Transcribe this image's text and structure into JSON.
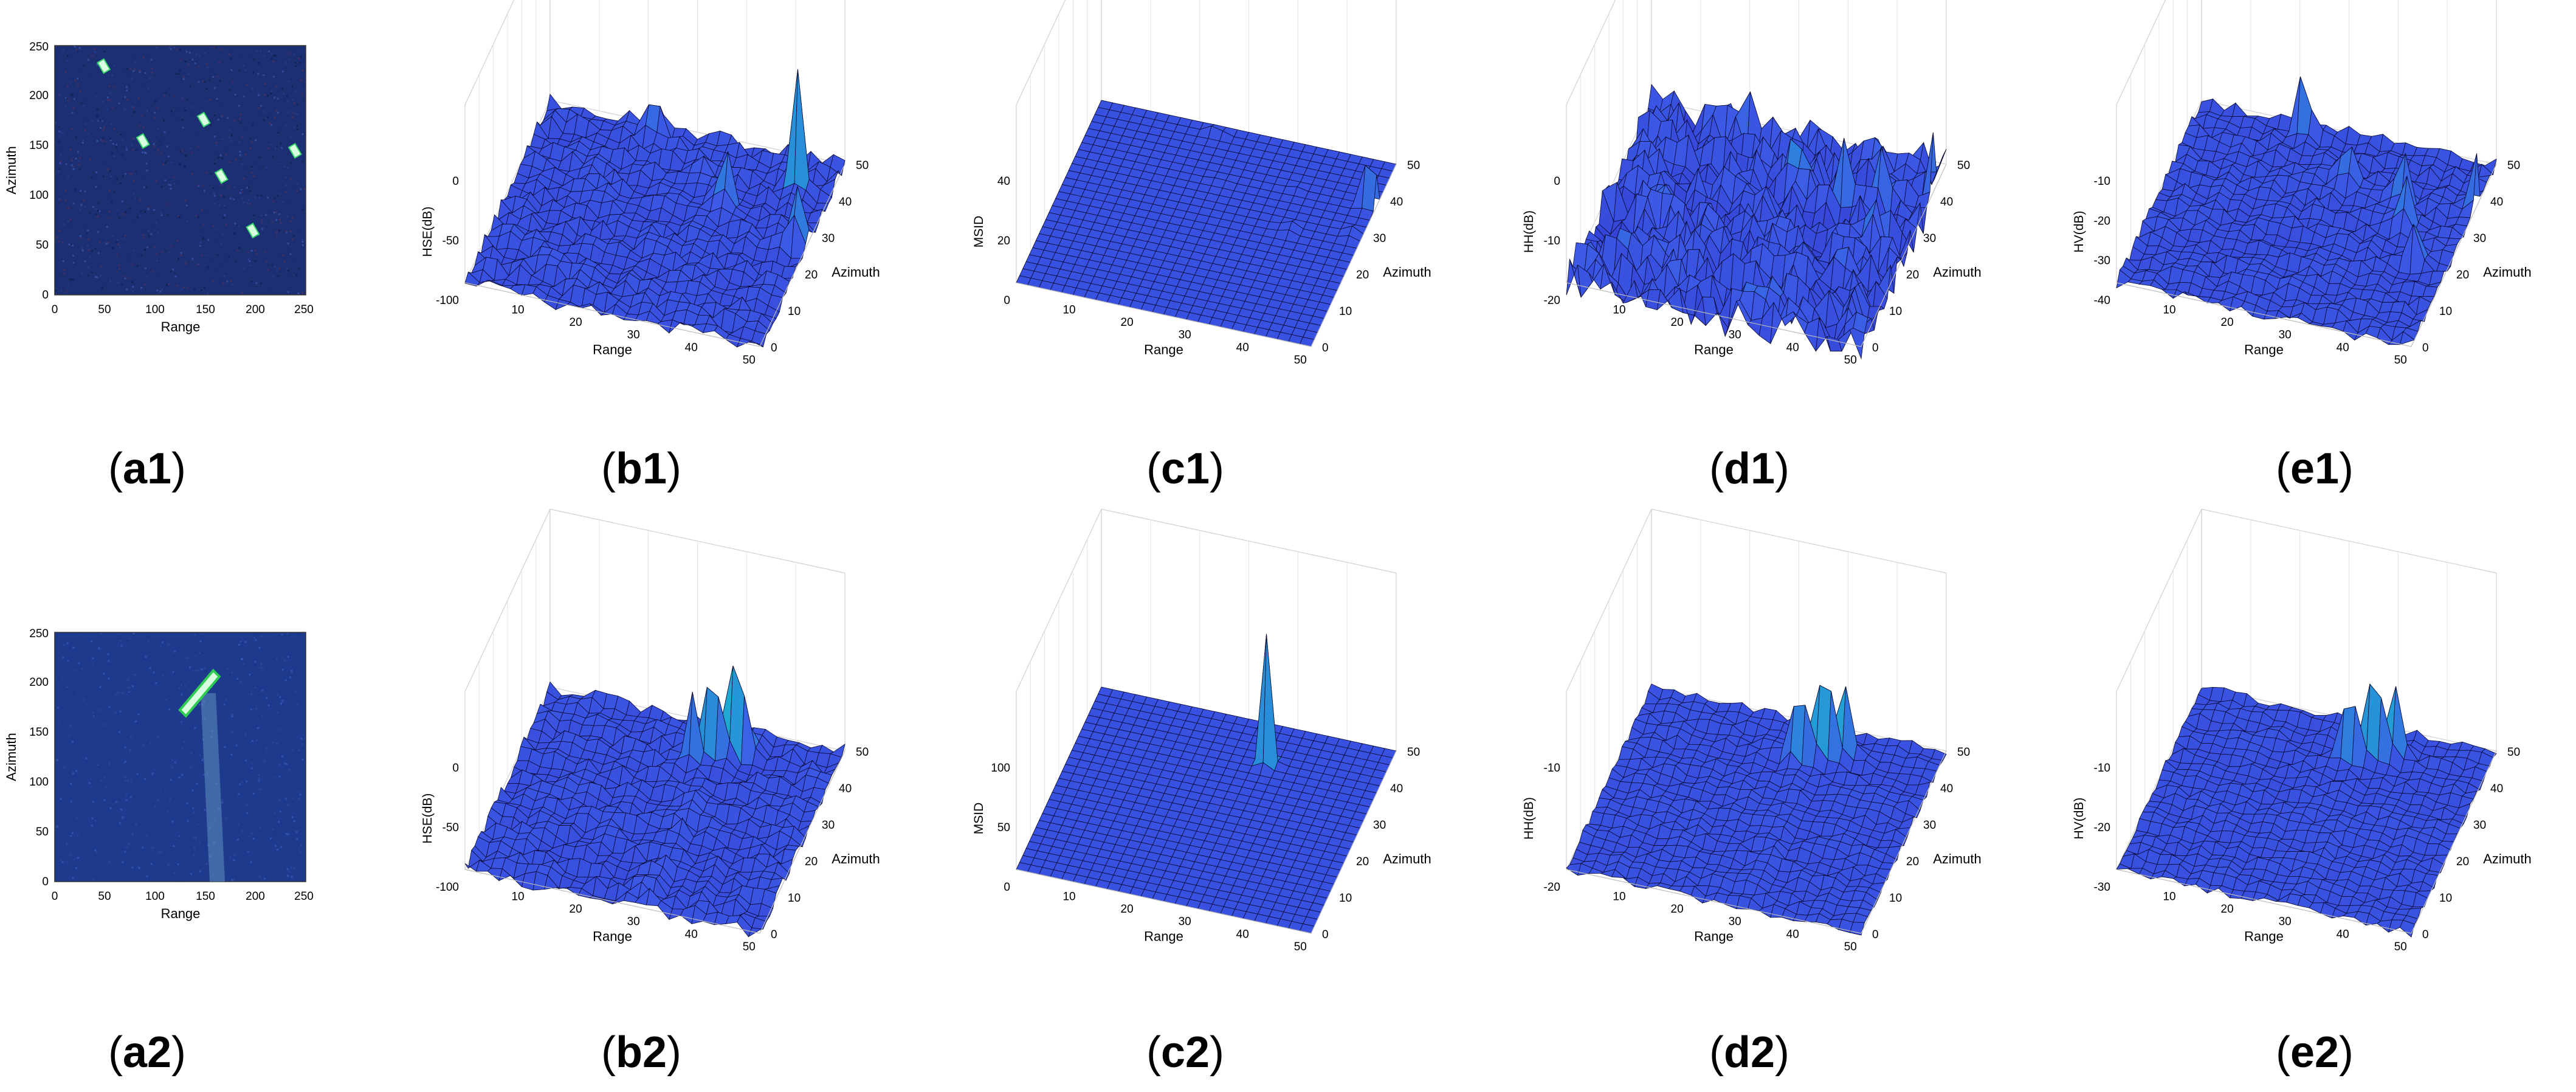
{
  "axis_labels": {
    "range": "Range",
    "azimuth": "Azimuth",
    "hse": "HSE(dB)",
    "msid": "MSID",
    "hh": "HH(dB)",
    "hv": "HV(dB)"
  },
  "captions": {
    "a1": {
      "letter": "a1"
    },
    "b1": {
      "letter": "b1"
    },
    "c1": {
      "letter": "c1"
    },
    "d1": {
      "letter": "d1"
    },
    "e1": {
      "letter": "e1"
    },
    "a2": {
      "letter": "a2"
    },
    "b2": {
      "letter": "b2"
    },
    "c2": {
      "letter": "c2"
    },
    "d2": {
      "letter": "d2"
    },
    "e2": {
      "letter": "e2"
    }
  },
  "colors": {
    "surface_low": "#3a3fd8",
    "surface_mid": "#1fa0c8",
    "surface_peak": "#f0e020",
    "image1_bg": "#1c2f73",
    "image2_bg": "#1e3a8c",
    "target": "#d8ffe0"
  },
  "chart_data": [
    {
      "id": "a1",
      "type": "heatmap",
      "xlabel": "Range",
      "ylabel": "Azimuth",
      "x_ticks": [
        "0",
        "50",
        "100",
        "150",
        "200",
        "250"
      ],
      "y_ticks": [
        "0",
        "50",
        "100",
        "150",
        "200",
        "250"
      ],
      "xlim": [
        0,
        256
      ],
      "ylim": [
        0,
        256
      ],
      "targets": [
        [
          50,
          235
        ],
        [
          90,
          158
        ],
        [
          152,
          180
        ],
        [
          170,
          122
        ],
        [
          202,
          66
        ],
        [
          245,
          148
        ]
      ]
    },
    {
      "id": "a2",
      "type": "heatmap",
      "xlabel": "Range",
      "ylabel": "Azimuth",
      "x_ticks": [
        "0",
        "50",
        "100",
        "150",
        "200",
        "250"
      ],
      "y_ticks": [
        "0",
        "50",
        "100",
        "150",
        "200",
        "250"
      ],
      "xlim": [
        0,
        256
      ],
      "ylim": [
        0,
        256
      ],
      "targets": [
        [
          140,
          195
        ]
      ]
    },
    {
      "id": "b1",
      "type": "surface",
      "zlabel": "HSE(dB)",
      "z_ticks": [
        "-100",
        "-50",
        "0"
      ],
      "zlim": [
        -100,
        0
      ],
      "range_ticks": [
        "10",
        "20",
        "30",
        "40",
        "50"
      ],
      "azimuth_ticks": [
        "0",
        "10",
        "20",
        "30",
        "40",
        "50"
      ],
      "base": -0.68,
      "noise": 0.09,
      "peak_color_threshold": 0.45,
      "peaks": [
        [
          18,
          48,
          0.18,
          1.2
        ],
        [
          34,
          34,
          0.35,
          1.0
        ],
        [
          44,
          42,
          0.7,
          0.7
        ],
        [
          48,
          28,
          0.35,
          1.0
        ],
        [
          28,
          40,
          0.12,
          1.0
        ]
      ]
    },
    {
      "id": "c1",
      "type": "surface",
      "zlabel": "MSID",
      "z_ticks": [
        "0",
        "20",
        "40"
      ],
      "zlim": [
        0,
        45
      ],
      "range_ticks": [
        "10",
        "20",
        "30",
        "40",
        "50"
      ],
      "azimuth_ticks": [
        "0",
        "10",
        "20",
        "30",
        "40",
        "50"
      ],
      "base": 0.0,
      "noise": 0.0,
      "peak_color_threshold": 0.45,
      "peaks": [
        [
          20,
          48,
          0.05,
          0.8
        ],
        [
          24,
          36,
          0.02,
          0.7
        ],
        [
          36,
          38,
          0.02,
          0.7
        ],
        [
          38,
          28,
          0.06,
          0.8
        ],
        [
          48,
          30,
          0.05,
          0.8
        ],
        [
          49,
          38,
          0.9,
          0.6
        ]
      ]
    },
    {
      "id": "d1",
      "type": "surface",
      "zlabel": "HH(dB)",
      "z_ticks": [
        "-20",
        "-10",
        "0"
      ],
      "zlim": [
        -20,
        0
      ],
      "range_ticks": [
        "10",
        "20",
        "30",
        "40",
        "50"
      ],
      "azimuth_ticks": [
        "0",
        "10",
        "20",
        "30",
        "40",
        "50"
      ],
      "base": -0.48,
      "noise": 0.24,
      "peak_color_threshold": 0.45,
      "peaks": [
        [
          18,
          48,
          0.35,
          0.8
        ],
        [
          28,
          38,
          0.3,
          0.8
        ],
        [
          36,
          36,
          0.35,
          0.8
        ],
        [
          42,
          38,
          0.3,
          0.8
        ],
        [
          44,
          28,
          0.4,
          0.9
        ],
        [
          50,
          42,
          0.35,
          0.8
        ]
      ]
    },
    {
      "id": "e1",
      "type": "surface",
      "zlabel": "HV(dB)",
      "z_ticks": [
        "-40",
        "-30",
        "-20",
        "-10"
      ],
      "zlim": [
        -40,
        0
      ],
      "range_ticks": [
        "10",
        "20",
        "30",
        "40",
        "50"
      ],
      "azimuth_ticks": [
        "0",
        "10",
        "20",
        "30",
        "40",
        "50"
      ],
      "base": -0.62,
      "noise": 0.07,
      "peak_color_threshold": 0.45,
      "peaks": [
        [
          18,
          48,
          0.35,
          0.9
        ],
        [
          28,
          38,
          0.3,
          0.9
        ],
        [
          38,
          36,
          0.35,
          0.9
        ],
        [
          40,
          30,
          0.35,
          0.9
        ],
        [
          44,
          22,
          0.3,
          0.9
        ],
        [
          50,
          38,
          0.35,
          0.9
        ]
      ]
    },
    {
      "id": "b2",
      "type": "surface",
      "zlabel": "HSE(dB)",
      "z_ticks": [
        "-100",
        "-50",
        "0"
      ],
      "zlim": [
        -100,
        0
      ],
      "range_ticks": [
        "10",
        "20",
        "30",
        "40",
        "50"
      ],
      "azimuth_ticks": [
        "0",
        "10",
        "20",
        "30",
        "40",
        "50"
      ],
      "base": -0.68,
      "noise": 0.08,
      "peak_color_threshold": 0.45,
      "wake": {
        "range": 30,
        "azimuth_max": 36,
        "width": 1.2,
        "depth": 0.12
      },
      "peaks": [
        [
          27,
          40,
          0.35,
          0.8
        ],
        [
          29,
          42,
          0.4,
          0.8
        ],
        [
          31,
          43,
          0.45,
          0.8
        ],
        [
          33,
          44,
          0.5,
          0.8
        ],
        [
          35,
          45,
          0.45,
          0.8
        ]
      ]
    },
    {
      "id": "c2",
      "type": "surface",
      "zlabel": "MSID",
      "z_ticks": [
        "0",
        "50",
        "100"
      ],
      "zlim": [
        0,
        120
      ],
      "range_ticks": [
        "10",
        "20",
        "30",
        "40",
        "50"
      ],
      "azimuth_ticks": [
        "0",
        "10",
        "20",
        "30",
        "40",
        "50"
      ],
      "base": 0.0,
      "noise": 0.0,
      "peak_color_threshold": 0.45,
      "peaks": [
        [
          31,
          40,
          0.9,
          0.6
        ]
      ]
    },
    {
      "id": "d2",
      "type": "surface",
      "zlabel": "HH(dB)",
      "z_ticks": [
        "-20",
        "-10"
      ],
      "zlim": [
        -25,
        0
      ],
      "range_ticks": [
        "10",
        "20",
        "30",
        "40",
        "50"
      ],
      "azimuth_ticks": [
        "0",
        "10",
        "20",
        "30",
        "40",
        "50"
      ],
      "base": -0.72,
      "noise": 0.05,
      "peak_color_threshold": 0.45,
      "wake": {
        "range": 30,
        "azimuth_max": 36,
        "width": 1.2,
        "depth": 0.05
      },
      "peaks": [
        [
          27,
          40,
          0.3,
          0.8
        ],
        [
          29,
          41,
          0.35,
          0.8
        ],
        [
          31,
          42,
          0.4,
          0.8
        ],
        [
          33,
          43,
          0.45,
          0.8
        ],
        [
          35,
          44,
          0.4,
          0.8
        ]
      ]
    },
    {
      "id": "e2",
      "type": "surface",
      "zlabel": "HV(dB)",
      "z_ticks": [
        "-30",
        "-20",
        "-10"
      ],
      "zlim": [
        -35,
        0
      ],
      "range_ticks": [
        "10",
        "20",
        "30",
        "40",
        "50"
      ],
      "azimuth_ticks": [
        "0",
        "10",
        "20",
        "30",
        "40",
        "50"
      ],
      "base": -0.72,
      "noise": 0.05,
      "peak_color_threshold": 0.45,
      "wake": {
        "range": 30,
        "azimuth_max": 36,
        "width": 1.2,
        "depth": 0.05
      },
      "peaks": [
        [
          27,
          40,
          0.3,
          0.8
        ],
        [
          29,
          41,
          0.35,
          0.8
        ],
        [
          31,
          42,
          0.4,
          0.8
        ],
        [
          33,
          43,
          0.45,
          0.8
        ],
        [
          35,
          44,
          0.4,
          0.8
        ]
      ]
    }
  ]
}
